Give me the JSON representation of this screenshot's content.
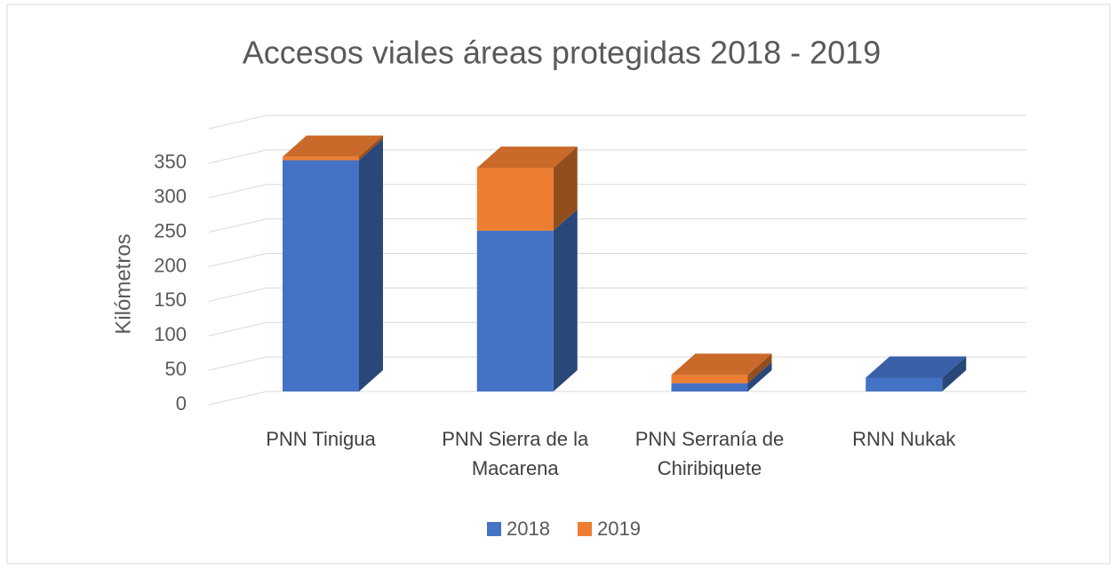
{
  "chart_data": {
    "type": "bar3d_stacked",
    "title": "Accesos viales áreas protegidas 2018 - 2019",
    "y_label": "Kilómetros",
    "categories": [
      "PNN Tinigua",
      "PNN Sierra de la Macarena",
      "PNN Serranía de Chiribiquete",
      "RNN Nukak"
    ],
    "series": [
      {
        "name": "2018",
        "color": "#4472c4",
        "values": [
          335,
          233,
          12,
          20
        ]
      },
      {
        "name": "2019",
        "color": "#ed7d31",
        "values": [
          5,
          91,
          12,
          0
        ]
      }
    ],
    "ylim": [
      0,
      400
    ],
    "yticks": [
      0,
      50,
      100,
      150,
      200,
      250,
      300,
      350
    ],
    "grid": true,
    "legend": "bottom"
  }
}
